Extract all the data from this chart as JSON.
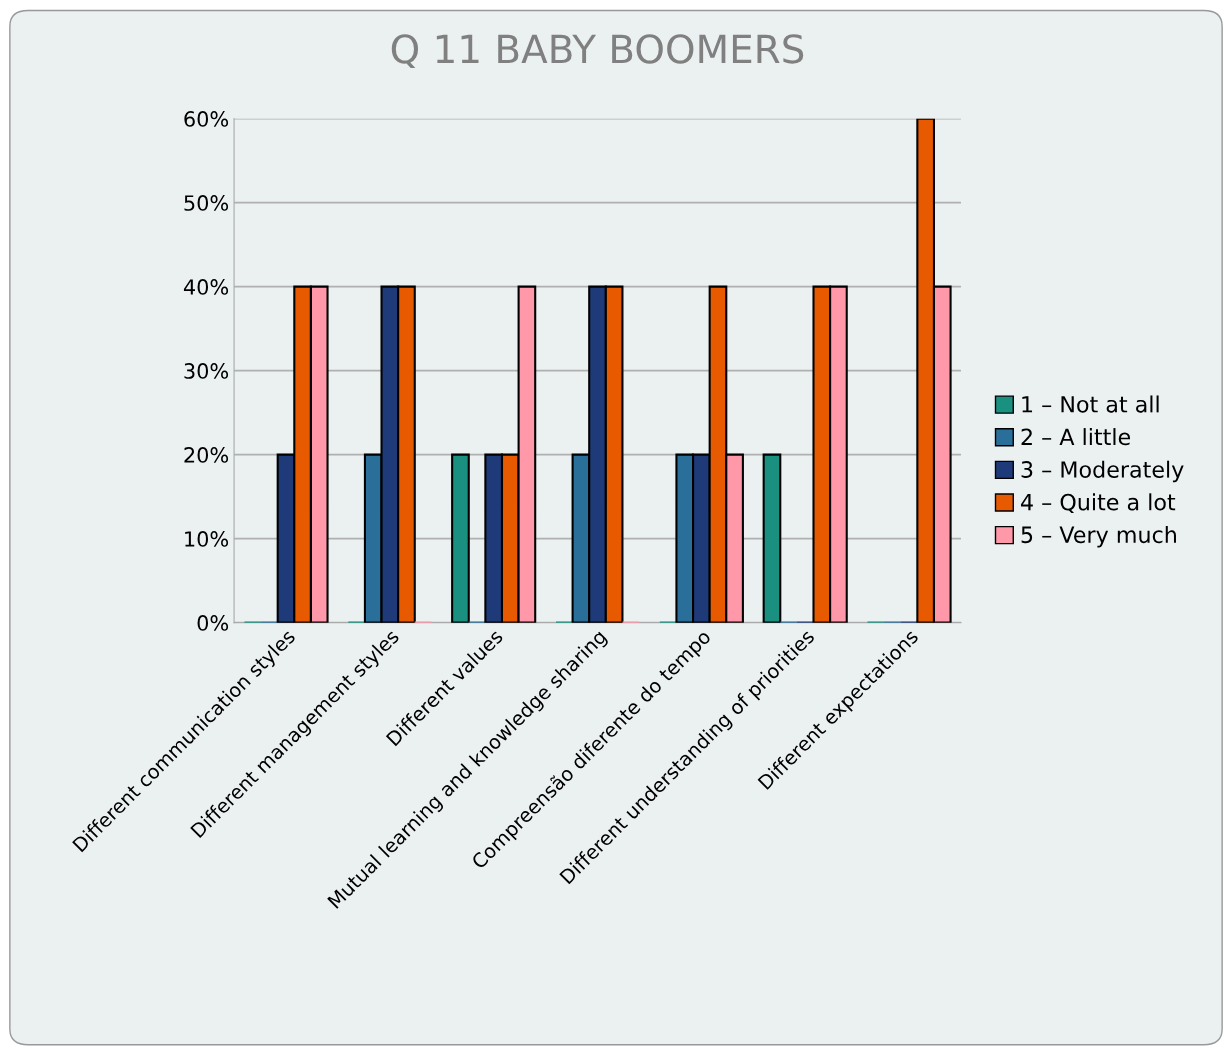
{
  "chart_data": {
    "type": "bar",
    "title": "Q 11 BABY BOOMERS",
    "categories": [
      "Different communication styles",
      "Different management styles",
      "Different values",
      "Mutual learning and knowledge sharing",
      "Compreensão diferente do tempo",
      "Different understanding of priorities",
      "Different expectations"
    ],
    "series": [
      {
        "name": "1 – Not at all",
        "color": "#1a9080",
        "values": [
          0,
          0,
          20,
          0,
          0,
          20,
          0
        ]
      },
      {
        "name": "2 – A little",
        "color": "#2a6e9a",
        "values": [
          0,
          20,
          0,
          20,
          20,
          0,
          0
        ]
      },
      {
        "name": "3 – Moderately",
        "color": "#1f3a78",
        "values": [
          20,
          40,
          20,
          40,
          20,
          0,
          0
        ]
      },
      {
        "name": "4 – Quite a lot",
        "color": "#e85a00",
        "values": [
          40,
          40,
          20,
          40,
          40,
          40,
          60
        ]
      },
      {
        "name": "5 – Very much",
        "color": "#ff99aa",
        "values": [
          40,
          0,
          40,
          0,
          20,
          40,
          40
        ]
      }
    ],
    "ylim": [
      0,
      60
    ],
    "yticks": [
      {
        "value": 0,
        "label": "0%"
      },
      {
        "value": 10,
        "label": "10%"
      },
      {
        "value": 20,
        "label": "20%"
      },
      {
        "value": 30,
        "label": "30%"
      },
      {
        "value": 40,
        "label": "40%"
      },
      {
        "value": 50,
        "label": "50%"
      },
      {
        "value": 60,
        "label": "60%"
      }
    ],
    "grid": "y",
    "legend": "right"
  }
}
